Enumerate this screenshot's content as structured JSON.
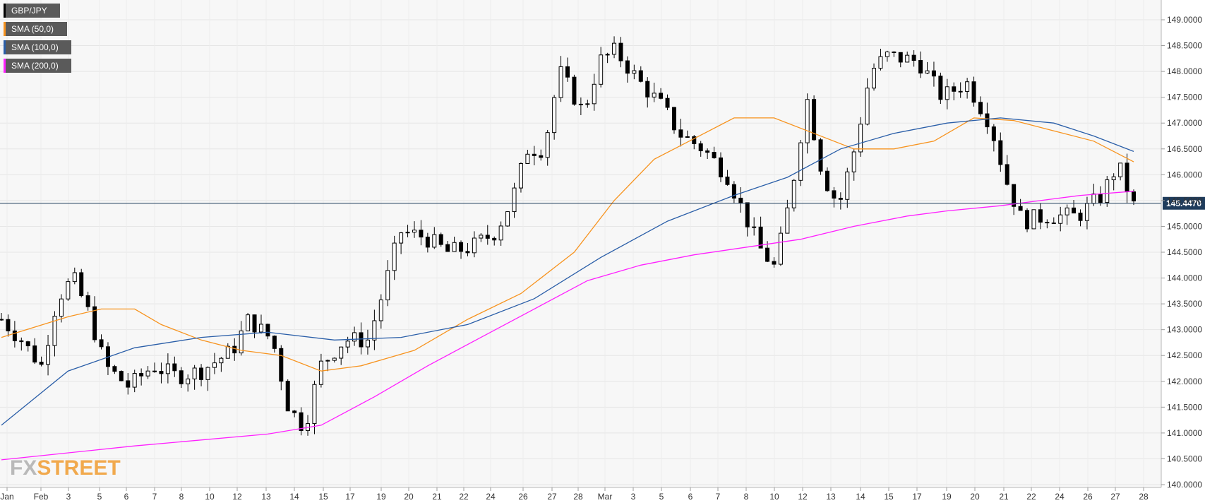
{
  "chart_data": {
    "type": "candlestick",
    "instrument": "GBP/JPY",
    "ylim": [
      140.0,
      149.0
    ],
    "yticks": [
      "140.0000",
      "140.5000",
      "141.0000",
      "141.5000",
      "142.0000",
      "142.5000",
      "143.0000",
      "143.5000",
      "144.0000",
      "144.5000",
      "145.0000",
      "145.5000",
      "146.0000",
      "146.5000",
      "147.0000",
      "147.5000",
      "148.0000",
      "148.5000",
      "149.0000"
    ],
    "x_labels": [
      "Jan",
      "Feb",
      "3",
      "5",
      "6",
      "7",
      "8",
      "10",
      "12",
      "13",
      "14",
      "15",
      "17",
      "19",
      "20",
      "21",
      "22",
      "24",
      "26",
      "27",
      "28",
      "Mar",
      "3",
      "5",
      "6",
      "7",
      "8",
      "10",
      "12",
      "13",
      "14",
      "15",
      "17",
      "19",
      "20",
      "21",
      "22",
      "24",
      "26",
      "27",
      "28"
    ],
    "current_price": 145.447,
    "current_price_label": "145.4470",
    "legend": [
      {
        "label": "GBP/JPY",
        "color": "#000000"
      },
      {
        "label": "SMA (50,0)",
        "color": "#f7931e"
      },
      {
        "label": "SMA (100,0)",
        "color": "#2a5ea8"
      },
      {
        "label": "SMA (200,0)",
        "color": "#ff20ff"
      }
    ],
    "series": [
      {
        "name": "SMA (50,0)",
        "color": "#f7931e",
        "points": [
          [
            0,
            142.85
          ],
          [
            5,
            143.05
          ],
          [
            10,
            143.25
          ],
          [
            15,
            143.4
          ],
          [
            20,
            143.4
          ],
          [
            24,
            143.1
          ],
          [
            30,
            142.8
          ],
          [
            36,
            142.6
          ],
          [
            42,
            142.5
          ],
          [
            48,
            142.2
          ],
          [
            54,
            142.3
          ],
          [
            62,
            142.6
          ],
          [
            70,
            143.2
          ],
          [
            78,
            143.7
          ],
          [
            86,
            144.5
          ],
          [
            92,
            145.5
          ],
          [
            98,
            146.3
          ],
          [
            104,
            146.7
          ],
          [
            110,
            147.1
          ],
          [
            116,
            147.1
          ],
          [
            122,
            146.8
          ],
          [
            128,
            146.5
          ],
          [
            134,
            146.5
          ],
          [
            140,
            146.65
          ],
          [
            146,
            147.1
          ],
          [
            152,
            147.05
          ],
          [
            158,
            146.85
          ],
          [
            164,
            146.65
          ],
          [
            170,
            146.25
          ]
        ]
      },
      {
        "name": "SMA (100,0)",
        "color": "#2a5ea8",
        "points": [
          [
            0,
            141.15
          ],
          [
            10,
            142.2
          ],
          [
            20,
            142.65
          ],
          [
            30,
            142.85
          ],
          [
            40,
            142.95
          ],
          [
            50,
            142.8
          ],
          [
            60,
            142.85
          ],
          [
            70,
            143.1
          ],
          [
            80,
            143.6
          ],
          [
            90,
            144.4
          ],
          [
            100,
            145.1
          ],
          [
            110,
            145.6
          ],
          [
            118,
            145.95
          ],
          [
            126,
            146.5
          ],
          [
            134,
            146.8
          ],
          [
            142,
            147.0
          ],
          [
            150,
            147.1
          ],
          [
            158,
            147.0
          ],
          [
            164,
            146.75
          ],
          [
            170,
            146.45
          ]
        ]
      },
      {
        "name": "SMA (200,0)",
        "color": "#ff20ff",
        "points": [
          [
            0,
            140.48
          ],
          [
            20,
            140.75
          ],
          [
            40,
            140.98
          ],
          [
            48,
            141.15
          ],
          [
            56,
            141.7
          ],
          [
            64,
            142.3
          ],
          [
            72,
            142.85
          ],
          [
            80,
            143.4
          ],
          [
            88,
            143.95
          ],
          [
            96,
            144.25
          ],
          [
            104,
            144.45
          ],
          [
            112,
            144.6
          ],
          [
            120,
            144.75
          ],
          [
            128,
            145.0
          ],
          [
            136,
            145.2
          ],
          [
            142,
            145.3
          ],
          [
            150,
            145.4
          ],
          [
            156,
            145.5
          ],
          [
            162,
            145.6
          ],
          [
            170,
            145.68
          ]
        ]
      }
    ],
    "watermark": [
      "FX",
      "STREET"
    ]
  }
}
